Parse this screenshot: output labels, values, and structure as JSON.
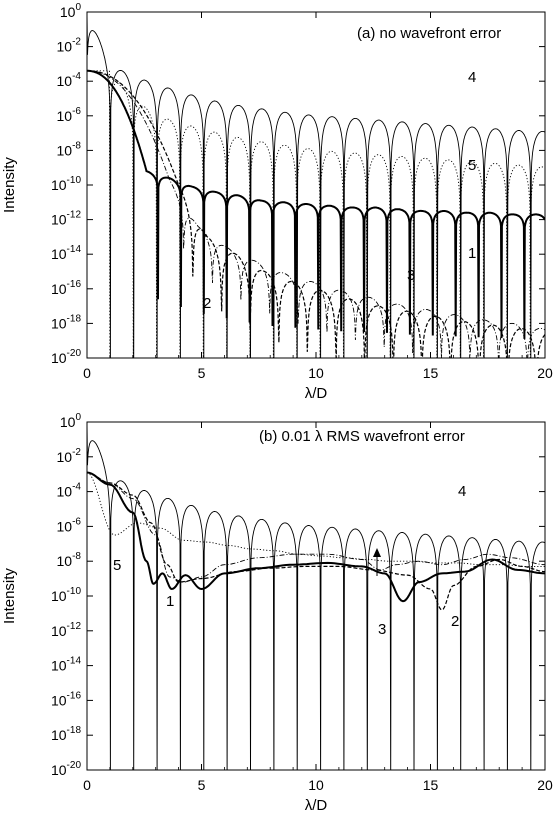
{
  "chart_data": [
    {
      "type": "line",
      "panel": "a",
      "title": "(a) no wavefront error",
      "xlabel": "λ/D",
      "ylabel": "Intensity",
      "xlim": [
        0,
        20
      ],
      "ylim": [
        1e-20,
        1
      ],
      "yscale": "log",
      "xticks": [
        0,
        5,
        10,
        15,
        20
      ],
      "yticks": [
        {
          "base": "10",
          "exp": "0"
        },
        {
          "base": "10",
          "exp": "-2"
        },
        {
          "base": "10",
          "exp": "-4"
        },
        {
          "base": "10",
          "exp": "-6"
        },
        {
          "base": "10",
          "exp": "-8"
        },
        {
          "base": "10",
          "exp": "-10"
        },
        {
          "base": "10",
          "exp": "-12"
        },
        {
          "base": "10",
          "exp": "-14"
        },
        {
          "base": "10",
          "exp": "-16"
        },
        {
          "base": "10",
          "exp": "-18"
        },
        {
          "base": "10",
          "exp": "-20"
        }
      ],
      "grid": false,
      "series": [
        {
          "label": "4",
          "style": "solid-thin",
          "peak_log": [
            0,
            -3.1,
            -3.7,
            -4.2,
            -4.6,
            -5.0,
            -5.3,
            -5.5,
            -5.7,
            -5.9,
            -6.0,
            -6.1,
            -6.2,
            -6.3,
            -6.4,
            -6.5,
            -6.6,
            -6.7,
            -6.8,
            -6.9
          ]
        },
        {
          "label": "5",
          "style": "dotted",
          "peak_log": [
            -3.4,
            -5.0,
            -6.0,
            -6.4,
            -6.8,
            -7.1,
            -7.4,
            -7.6,
            -7.8,
            -8.0,
            -8.1,
            -8.2,
            -8.3,
            -8.4,
            -8.5,
            -8.6,
            -8.7,
            -8.8,
            -8.9,
            -9.0
          ]
        },
        {
          "label": "1",
          "style": "solid-thick",
          "peak_log": [
            -3.4,
            -9.2,
            -9.6,
            -10.1,
            -10.4,
            -10.6,
            -10.9,
            -11.0,
            -11.1,
            -11.2,
            -11.3,
            -11.3,
            -11.4,
            -11.5,
            -11.5,
            -11.6,
            -11.6,
            -11.7,
            -11.7
          ]
        },
        {
          "label": "2",
          "style": "dashed",
          "peak_log": [
            -3.4,
            -10.0,
            -13.0,
            -14.0,
            -15.0,
            -15.6,
            -16.1,
            -16.6,
            -17.0,
            -17.3,
            -17.6,
            -17.9,
            -18.1,
            -18.3,
            -18.5,
            -18.7
          ]
        },
        {
          "label": "3",
          "style": "dashdot",
          "peak_log": [
            -3.4,
            -9.7,
            -12.4,
            -13.6,
            -14.4,
            -15.1,
            -15.6,
            -16.1,
            -16.5,
            -16.9,
            -17.2,
            -17.5,
            -17.8,
            -18.0,
            -18.3,
            -18.6
          ]
        }
      ],
      "curve_labels": [
        "4",
        "5",
        "1",
        "3",
        "2"
      ]
    },
    {
      "type": "line",
      "panel": "b",
      "title": "(b) 0.01 λ RMS wavefront error",
      "xlabel": "λ/D",
      "ylabel": "Intensity",
      "xlim": [
        0,
        20
      ],
      "ylim": [
        1e-20,
        1
      ],
      "yscale": "log",
      "xticks": [
        0,
        5,
        10,
        15,
        20
      ],
      "yticks": [
        {
          "base": "10",
          "exp": "0"
        },
        {
          "base": "10",
          "exp": "-2"
        },
        {
          "base": "10",
          "exp": "-4"
        },
        {
          "base": "10",
          "exp": "-6"
        },
        {
          "base": "10",
          "exp": "-8"
        },
        {
          "base": "10",
          "exp": "-10"
        },
        {
          "base": "10",
          "exp": "-12"
        },
        {
          "base": "10",
          "exp": "-14"
        },
        {
          "base": "10",
          "exp": "-16"
        },
        {
          "base": "10",
          "exp": "-18"
        },
        {
          "base": "10",
          "exp": "-20"
        }
      ],
      "grid": false,
      "series": [
        {
          "label": "4",
          "style": "solid-thin",
          "peak_log": [
            0,
            -3.1,
            -3.7,
            -4.2,
            -4.6,
            -5.0,
            -5.3,
            -5.5,
            -5.7,
            -5.9,
            -6.0,
            -6.1,
            -6.2,
            -6.3,
            -6.4,
            -6.5,
            -6.6,
            -6.7,
            -6.8,
            -6.9
          ]
        },
        {
          "label": "5",
          "style": "dotted",
          "points": [
            [
              0,
              -2.9
            ],
            [
              1.2,
              -6.5
            ],
            [
              2.2,
              -5.8
            ],
            [
              3.2,
              -6.1
            ],
            [
              4.2,
              -6.8
            ],
            [
              5.2,
              -6.9
            ],
            [
              6.2,
              -7.1
            ],
            [
              7.2,
              -7.3
            ],
            [
              8.2,
              -7.4
            ],
            [
              9.2,
              -7.6
            ],
            [
              10.2,
              -7.7
            ],
            [
              11.2,
              -7.8
            ],
            [
              12.2,
              -7.9
            ],
            [
              13.2,
              -8.0
            ],
            [
              14.2,
              -8.0
            ],
            [
              15.2,
              -8.1
            ],
            [
              16.2,
              -8.1
            ],
            [
              17.2,
              -8.2
            ],
            [
              18.2,
              -8.2
            ],
            [
              19.2,
              -8.3
            ],
            [
              20,
              -8.3
            ]
          ]
        },
        {
          "label": "1",
          "style": "solid-thick",
          "points": [
            [
              0,
              -2.9
            ],
            [
              1.0,
              -3.6
            ],
            [
              2.0,
              -5.2
            ],
            [
              2.6,
              -8.0
            ],
            [
              2.9,
              -9.3
            ],
            [
              3.3,
              -8.7
            ],
            [
              3.7,
              -9.6
            ],
            [
              4.3,
              -8.8
            ],
            [
              5.0,
              -9.6
            ],
            [
              6.0,
              -8.7
            ],
            [
              7.5,
              -8.4
            ],
            [
              9.0,
              -8.2
            ],
            [
              10.5,
              -8.1
            ],
            [
              12.0,
              -8.3
            ],
            [
              13.0,
              -8.7
            ],
            [
              13.8,
              -10.3
            ],
            [
              14.5,
              -9.2
            ],
            [
              15.5,
              -8.7
            ],
            [
              16.5,
              -8.6
            ],
            [
              17.7,
              -7.9
            ],
            [
              18.8,
              -8.5
            ],
            [
              20,
              -8.7
            ]
          ]
        },
        {
          "label": "2",
          "style": "dashed",
          "points": [
            [
              0,
              -2.9
            ],
            [
              1.0,
              -3.5
            ],
            [
              2.0,
              -4.2
            ],
            [
              2.8,
              -5.8
            ],
            [
              3.5,
              -8.2
            ],
            [
              4.0,
              -9.2
            ],
            [
              5.0,
              -9.0
            ],
            [
              6.5,
              -8.6
            ],
            [
              8.0,
              -8.4
            ],
            [
              9.5,
              -8.3
            ],
            [
              11.0,
              -8.3
            ],
            [
              12.5,
              -8.5
            ],
            [
              14.0,
              -8.8
            ],
            [
              15.0,
              -9.6
            ],
            [
              15.5,
              -10.8
            ],
            [
              16.0,
              -9.4
            ],
            [
              17.0,
              -8.3
            ],
            [
              18.0,
              -7.9
            ],
            [
              19.0,
              -8.3
            ],
            [
              20,
              -8.6
            ]
          ]
        },
        {
          "label": "3",
          "style": "dashdot",
          "points": [
            [
              0,
              -2.9
            ],
            [
              1.0,
              -3.5
            ],
            [
              2.0,
              -4.4
            ],
            [
              3.0,
              -6.5
            ],
            [
              3.6,
              -8.9
            ],
            [
              4.2,
              -9.2
            ],
            [
              5.0,
              -8.9
            ],
            [
              6.0,
              -8.2
            ],
            [
              7.5,
              -7.8
            ],
            [
              9.0,
              -7.6
            ],
            [
              10.5,
              -7.6
            ],
            [
              12.0,
              -7.9
            ],
            [
              12.8,
              -8.5
            ],
            [
              13.5,
              -8.2
            ],
            [
              14.5,
              -8.0
            ],
            [
              15.5,
              -8.2
            ],
            [
              16.5,
              -7.9
            ],
            [
              17.5,
              -7.6
            ],
            [
              18.5,
              -7.8
            ],
            [
              20,
              -8.2
            ]
          ]
        }
      ],
      "curve_labels": [
        "4",
        "5",
        "1",
        "3",
        "2"
      ]
    }
  ]
}
